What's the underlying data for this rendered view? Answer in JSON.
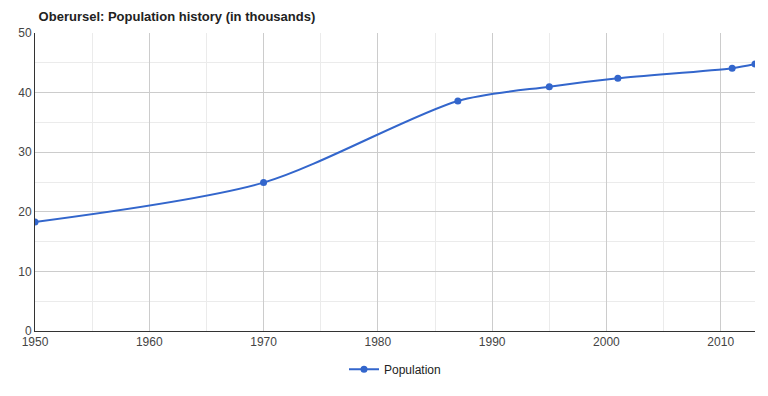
{
  "chart_data": {
    "type": "line",
    "title": "Oberursel: Population history (in thousands)",
    "x": [
      1950,
      1970,
      1987,
      1995,
      2001,
      2011,
      2013
    ],
    "series": [
      {
        "name": "Population",
        "color": "#3366cc",
        "values": [
          18.3,
          24.9,
          38.6,
          41.0,
          42.4,
          44.1,
          44.8
        ]
      }
    ],
    "xlim": [
      1950,
      2013
    ],
    "xticks": [
      1950,
      1960,
      1970,
      1980,
      1990,
      2000,
      2010
    ],
    "ylim": [
      0,
      50
    ],
    "yticks": [
      0,
      10,
      20,
      30,
      40,
      50
    ],
    "grid": true,
    "legend": "bottom",
    "marker": "circle",
    "line_style": "smooth"
  }
}
